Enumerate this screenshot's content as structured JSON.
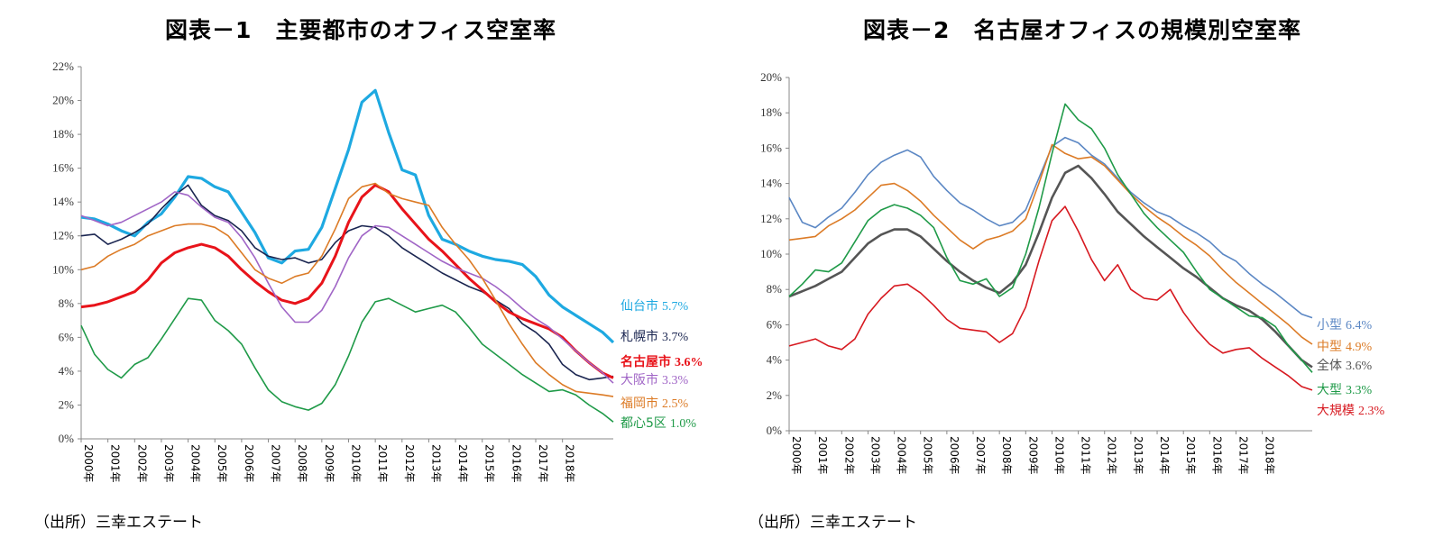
{
  "chart_data": [
    {
      "type": "line",
      "title": "図表－1　主要都市のオフィス空室率",
      "source": "（出所）三幸エステート",
      "x_tick_labels": [
        "2000年",
        "2001年",
        "2002年",
        "2003年",
        "2004年",
        "2005年",
        "2006年",
        "2007年",
        "2008年",
        "2009年",
        "2010年",
        "2011年",
        "2012年",
        "2013年",
        "2014年",
        "2015年",
        "2016年",
        "2017年",
        "2018年"
      ],
      "x_range": [
        2000,
        2019.9
      ],
      "ylim": [
        0,
        22
      ],
      "y_tick_labels": [
        "0%",
        "2%",
        "4%",
        "6%",
        "8%",
        "10%",
        "12%",
        "14%",
        "16%",
        "18%",
        "20%",
        "22%"
      ],
      "grid": false,
      "legend": "line-end labels",
      "x": [
        2000.0,
        2000.5,
        2001.0,
        2001.5,
        2002.0,
        2002.5,
        2003.0,
        2003.5,
        2004.0,
        2004.5,
        2005.0,
        2005.5,
        2006.0,
        2006.5,
        2007.0,
        2007.5,
        2008.0,
        2008.5,
        2009.0,
        2009.5,
        2010.0,
        2010.5,
        2011.0,
        2011.5,
        2012.0,
        2012.5,
        2013.0,
        2013.5,
        2014.0,
        2014.5,
        2015.0,
        2015.5,
        2016.0,
        2016.5,
        2017.0,
        2017.5,
        2018.0,
        2018.5,
        2019.0,
        2019.5,
        2019.9
      ],
      "series": [
        {
          "name": "仙台市",
          "label": "5.7%",
          "color": "#1ea9e1",
          "values": [
            13.1,
            13.0,
            12.7,
            12.3,
            12.0,
            12.8,
            13.3,
            14.3,
            15.5,
            15.4,
            14.9,
            14.6,
            13.4,
            12.2,
            10.7,
            10.4,
            11.1,
            11.2,
            12.5,
            14.8,
            17.1,
            19.9,
            20.6,
            18.1,
            15.9,
            15.6,
            13.2,
            11.8,
            11.5,
            11.1,
            10.8,
            10.6,
            10.5,
            10.3,
            9.6,
            8.5,
            7.8,
            7.3,
            6.8,
            6.3,
            5.7
          ]
        },
        {
          "name": "札幌市",
          "label": "3.7%",
          "color": "#1a2550",
          "values": [
            12.0,
            12.1,
            11.5,
            11.8,
            12.2,
            12.7,
            13.6,
            14.4,
            15.0,
            13.8,
            13.2,
            12.9,
            12.3,
            11.3,
            10.8,
            10.6,
            10.7,
            10.4,
            10.6,
            11.6,
            12.3,
            12.6,
            12.5,
            12.0,
            11.3,
            10.8,
            10.3,
            9.8,
            9.4,
            9.0,
            8.7,
            8.2,
            7.7,
            6.8,
            6.3,
            5.6,
            4.4,
            3.8,
            3.5,
            3.6,
            3.7
          ]
        },
        {
          "name": "名古屋市",
          "label": "3.6%",
          "color": "#e8131a",
          "values": [
            7.8,
            7.9,
            8.1,
            8.4,
            8.7,
            9.4,
            10.4,
            11.0,
            11.3,
            11.5,
            11.3,
            10.8,
            10.0,
            9.3,
            8.7,
            8.2,
            8.0,
            8.3,
            9.2,
            10.8,
            12.8,
            14.3,
            15.0,
            14.6,
            13.6,
            12.7,
            11.8,
            11.1,
            10.3,
            9.5,
            8.8,
            8.1,
            7.5,
            7.1,
            6.8,
            6.5,
            6.0,
            5.2,
            4.5,
            3.9,
            3.6
          ]
        },
        {
          "name": "大阪市",
          "label": "3.3%",
          "color": "#a065c6",
          "values": [
            13.2,
            12.9,
            12.6,
            12.8,
            13.2,
            13.6,
            14.0,
            14.6,
            14.4,
            13.7,
            13.1,
            12.8,
            11.9,
            10.7,
            9.2,
            7.8,
            6.9,
            6.9,
            7.6,
            9.0,
            10.7,
            12.0,
            12.6,
            12.5,
            12.0,
            11.5,
            11.0,
            10.5,
            10.1,
            9.8,
            9.5,
            9.0,
            8.4,
            7.7,
            7.1,
            6.6,
            5.9,
            5.2,
            4.5,
            3.9,
            3.3
          ]
        },
        {
          "name": "福岡市",
          "label": "2.5%",
          "color": "#dc7b26",
          "values": [
            10.0,
            10.2,
            10.8,
            11.2,
            11.5,
            12.0,
            12.3,
            12.6,
            12.7,
            12.7,
            12.5,
            12.0,
            11.0,
            10.0,
            9.5,
            9.2,
            9.6,
            9.8,
            10.8,
            12.4,
            14.2,
            14.9,
            15.1,
            14.5,
            14.2,
            14.0,
            13.8,
            12.5,
            11.5,
            10.6,
            9.5,
            8.2,
            6.8,
            5.6,
            4.5,
            3.8,
            3.2,
            2.8,
            2.7,
            2.6,
            2.5
          ]
        },
        {
          "name": "都心5区",
          "label": "1.0%",
          "color": "#1f9a48",
          "values": [
            6.7,
            5.0,
            4.1,
            3.6,
            4.4,
            4.8,
            5.9,
            7.1,
            8.3,
            8.2,
            7.0,
            6.4,
            5.6,
            4.2,
            2.9,
            2.2,
            1.9,
            1.7,
            2.1,
            3.2,
            4.9,
            6.9,
            8.1,
            8.3,
            7.9,
            7.5,
            7.7,
            7.9,
            7.5,
            6.6,
            5.6,
            5.0,
            4.4,
            3.8,
            3.3,
            2.8,
            2.9,
            2.6,
            2.0,
            1.5,
            1.0
          ]
        }
      ]
    },
    {
      "type": "line",
      "title": "図表－2　名古屋オフィスの規模別空室率",
      "source": "（出所）三幸エステート",
      "x_tick_labels": [
        "2000年",
        "2001年",
        "2002年",
        "2003年",
        "2004年",
        "2005年",
        "2006年",
        "2007年",
        "2008年",
        "2009年",
        "2010年",
        "2011年",
        "2012年",
        "2013年",
        "2014年",
        "2015年",
        "2016年",
        "2017年",
        "2018年"
      ],
      "x_range": [
        2000,
        2019.9
      ],
      "ylim": [
        0,
        20
      ],
      "y_tick_labels": [
        "0%",
        "2%",
        "4%",
        "6%",
        "8%",
        "10%",
        "12%",
        "14%",
        "16%",
        "18%",
        "20%"
      ],
      "grid": false,
      "legend": "line-end labels",
      "x": [
        2000.0,
        2000.5,
        2001.0,
        2001.5,
        2002.0,
        2002.5,
        2003.0,
        2003.5,
        2004.0,
        2004.5,
        2005.0,
        2005.5,
        2006.0,
        2006.5,
        2007.0,
        2007.5,
        2008.0,
        2008.5,
        2009.0,
        2009.5,
        2010.0,
        2010.5,
        2011.0,
        2011.5,
        2012.0,
        2012.5,
        2013.0,
        2013.5,
        2014.0,
        2014.5,
        2015.0,
        2015.5,
        2016.0,
        2016.5,
        2017.0,
        2017.5,
        2018.0,
        2018.5,
        2019.0,
        2019.5,
        2019.9
      ],
      "series": [
        {
          "name": "小型",
          "label": "6.4%",
          "color": "#5b87c4",
          "values": [
            13.2,
            11.8,
            11.5,
            12.1,
            12.6,
            13.5,
            14.5,
            15.2,
            15.6,
            15.9,
            15.5,
            14.4,
            13.6,
            12.9,
            12.5,
            12.0,
            11.6,
            11.8,
            12.5,
            14.3,
            16.1,
            16.6,
            16.3,
            15.6,
            15.1,
            14.3,
            13.5,
            12.9,
            12.4,
            12.1,
            11.6,
            11.2,
            10.7,
            10.0,
            9.6,
            8.9,
            8.3,
            7.8,
            7.2,
            6.6,
            6.4
          ]
        },
        {
          "name": "中型",
          "label": "4.9%",
          "color": "#dc7b26",
          "values": [
            10.8,
            10.9,
            11.0,
            11.6,
            12.0,
            12.5,
            13.2,
            13.9,
            14.0,
            13.6,
            13.0,
            12.2,
            11.5,
            10.8,
            10.3,
            10.8,
            11.0,
            11.3,
            12.0,
            14.0,
            16.2,
            15.7,
            15.4,
            15.5,
            15.0,
            14.2,
            13.4,
            12.7,
            12.1,
            11.6,
            11.0,
            10.5,
            9.9,
            9.1,
            8.4,
            7.8,
            7.2,
            6.6,
            6.0,
            5.3,
            4.9
          ]
        },
        {
          "name": "全体",
          "label": "3.6%",
          "color": "#555555",
          "values": [
            7.6,
            7.9,
            8.2,
            8.6,
            9.0,
            9.8,
            10.6,
            11.1,
            11.4,
            11.4,
            11.0,
            10.3,
            9.6,
            9.0,
            8.5,
            8.1,
            7.8,
            8.4,
            9.4,
            11.2,
            13.2,
            14.6,
            15.0,
            14.3,
            13.4,
            12.4,
            11.7,
            11.0,
            10.4,
            9.8,
            9.2,
            8.7,
            8.1,
            7.5,
            7.1,
            6.8,
            6.3,
            5.6,
            4.8,
            4.0,
            3.6
          ]
        },
        {
          "name": "大型",
          "label": "3.3%",
          "color": "#1f9a48",
          "values": [
            7.6,
            8.3,
            9.1,
            9.0,
            9.5,
            10.7,
            11.9,
            12.5,
            12.8,
            12.6,
            12.2,
            11.5,
            9.8,
            8.5,
            8.3,
            8.6,
            7.6,
            8.1,
            10.0,
            12.6,
            15.7,
            18.5,
            17.6,
            17.1,
            16.0,
            14.5,
            13.4,
            12.3,
            11.5,
            10.8,
            10.1,
            9.0,
            8.0,
            7.5,
            7.0,
            6.5,
            6.4,
            5.9,
            4.8,
            4.0,
            3.3
          ]
        },
        {
          "name": "大規模",
          "label": "2.3%",
          "color": "#d71920",
          "values": [
            4.8,
            5.0,
            5.2,
            4.8,
            4.6,
            5.2,
            6.6,
            7.5,
            8.2,
            8.3,
            7.8,
            7.1,
            6.3,
            5.8,
            5.7,
            5.6,
            5.0,
            5.5,
            7.0,
            9.6,
            11.9,
            12.7,
            11.3,
            9.7,
            8.5,
            9.4,
            8.0,
            7.5,
            7.4,
            8.0,
            6.7,
            5.7,
            4.9,
            4.4,
            4.6,
            4.7,
            4.1,
            3.6,
            3.1,
            2.5,
            2.3
          ]
        }
      ]
    }
  ]
}
